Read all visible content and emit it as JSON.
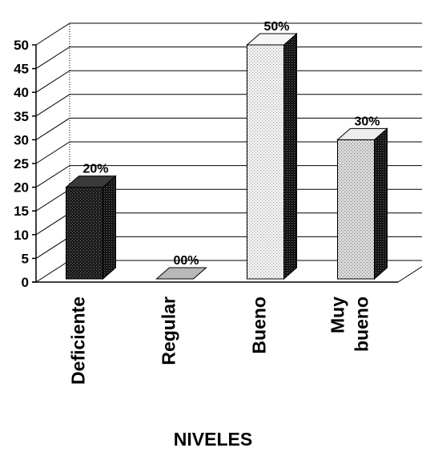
{
  "chart_data": {
    "type": "bar",
    "categories": [
      "Deficiente",
      "Regular",
      "Bueno",
      "Muy bueno"
    ],
    "category_lines": [
      [
        "Deficiente"
      ],
      [
        "Regular"
      ],
      [
        "Bueno"
      ],
      [
        "Muy",
        "bueno"
      ]
    ],
    "values": [
      20,
      0,
      50,
      30
    ],
    "data_labels": [
      "20%",
      "00%",
      "50%",
      "30%"
    ],
    "title": "",
    "xlabel": "NIVELES",
    "ylabel": "",
    "ylim": [
      0,
      50
    ],
    "yticks": [
      "0",
      "5",
      "10",
      "15",
      "20",
      "25",
      "30",
      "35",
      "40",
      "45",
      "50"
    ],
    "grid": true,
    "legend": "none",
    "style": "3d-column",
    "colors": {
      "Deficiente": "#2b2b2b",
      "Regular": "#8a8a8a",
      "Bueno": "#e9e9e9",
      "Muy bueno": "#d4d4d4"
    }
  }
}
